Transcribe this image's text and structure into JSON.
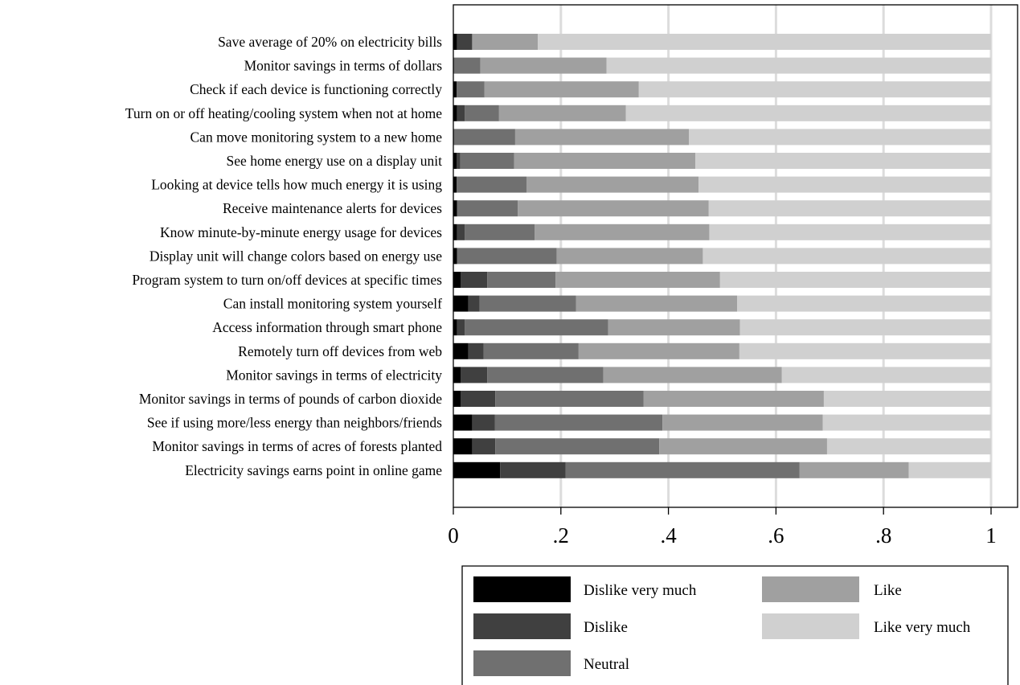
{
  "chart_data": {
    "type": "bar",
    "orientation": "horizontal",
    "stacked": true,
    "categories": [
      "Save average of 20% on electricity bills",
      "Monitor savings in terms of dollars",
      "Check if each device is functioning correctly",
      "Turn on or off heating/cooling system when not at home",
      "Can move monitoring system to a new home",
      "See home energy use on a display unit",
      "Looking at device tells how much energy it is using",
      "Receive maintenance alerts for devices",
      "Know minute-by-minute energy usage for devices",
      "Display unit will change colors based on energy use",
      "Program system to turn on/off devices at specific times",
      "Can install monitoring system yourself",
      "Access information through smart phone",
      "Remotely turn off devices from web",
      "Monitor savings in terms of electricity",
      "Monitor savings in terms of pounds of carbon dioxide",
      "See if using more/less energy than neighbors/friends",
      "Monitor savings in terms of acres of forests planted",
      "Electricity savings earns point in online game"
    ],
    "series": [
      {
        "name": "Dislike very much",
        "color": "#000000",
        "values": [
          0.007,
          0.0,
          0.006,
          0.007,
          0.0,
          0.006,
          0.006,
          0.007,
          0.007,
          0.007,
          0.014,
          0.028,
          0.007,
          0.028,
          0.014,
          0.014,
          0.035,
          0.035,
          0.087
        ]
      },
      {
        "name": "Dislike",
        "color": "#404040",
        "values": [
          0.028,
          0.0,
          0.0,
          0.014,
          0.0,
          0.007,
          0.0,
          0.0,
          0.014,
          0.0,
          0.049,
          0.021,
          0.014,
          0.028,
          0.049,
          0.064,
          0.042,
          0.043,
          0.122
        ]
      },
      {
        "name": "Neutral",
        "color": "#707070",
        "values": [
          0.0,
          0.05,
          0.052,
          0.064,
          0.115,
          0.1,
          0.13,
          0.113,
          0.13,
          0.185,
          0.127,
          0.179,
          0.267,
          0.177,
          0.216,
          0.276,
          0.312,
          0.305,
          0.435
        ]
      },
      {
        "name": "Like",
        "color": "#a0a0a0",
        "values": [
          0.122,
          0.235,
          0.287,
          0.236,
          0.323,
          0.337,
          0.32,
          0.355,
          0.325,
          0.272,
          0.306,
          0.3,
          0.245,
          0.299,
          0.332,
          0.335,
          0.298,
          0.312,
          0.203
        ]
      },
      {
        "name": "Like very much",
        "color": "#d0d0d0",
        "values": [
          0.843,
          0.715,
          0.655,
          0.679,
          0.562,
          0.55,
          0.544,
          0.525,
          0.524,
          0.536,
          0.504,
          0.472,
          0.467,
          0.468,
          0.389,
          0.311,
          0.313,
          0.305,
          0.153
        ]
      }
    ],
    "xlim": [
      0,
      1
    ],
    "xticks": [
      0,
      0.2,
      0.4,
      0.6,
      0.8,
      1
    ],
    "xtick_labels": [
      "0",
      ".2",
      ".4",
      ".6",
      ".8",
      "1"
    ],
    "grid": "vertical",
    "legend_position": "bottom",
    "title": "",
    "xlabel": "",
    "ylabel": ""
  }
}
